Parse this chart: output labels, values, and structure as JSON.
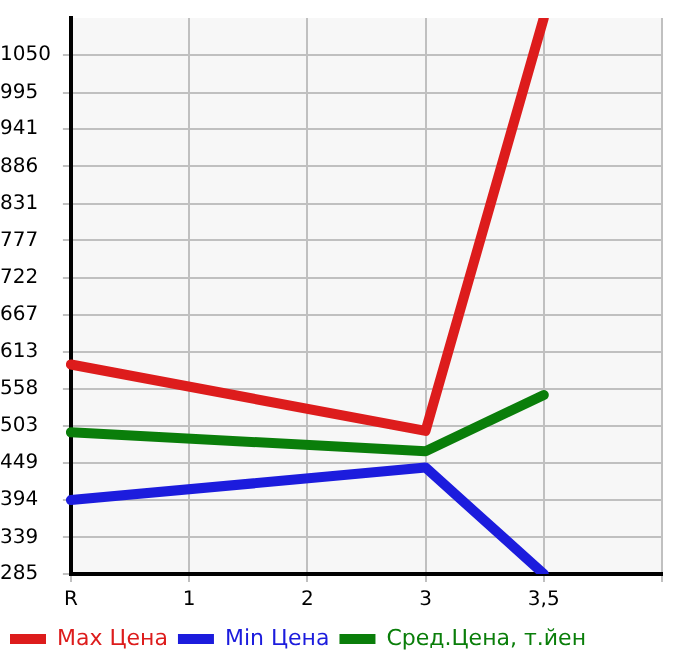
{
  "chart_data": {
    "type": "line",
    "categories": [
      "R",
      "1",
      "2",
      "3",
      "3,5",
      null
    ],
    "series": [
      {
        "name": "Max Цена",
        "color": "#dd1c1c",
        "values": [
          594,
          null,
          null,
          496,
          1105,
          null
        ]
      },
      {
        "name": "Min Цена",
        "color": "#1c1cdd",
        "values": [
          394,
          null,
          null,
          442,
          285,
          null
        ]
      },
      {
        "name": "Сред.Цена, т.йен",
        "color": "#0a7e0a",
        "values": [
          494,
          null,
          null,
          466,
          549,
          null
        ]
      }
    ],
    "ylim": [
      285,
      1105
    ],
    "yticks": [
      285,
      339,
      394,
      449,
      503,
      558,
      613,
      667,
      722,
      777,
      831,
      886,
      941,
      995,
      1050
    ],
    "grid": true,
    "legend": "bottom",
    "marker": "none",
    "line_style": "solid"
  }
}
